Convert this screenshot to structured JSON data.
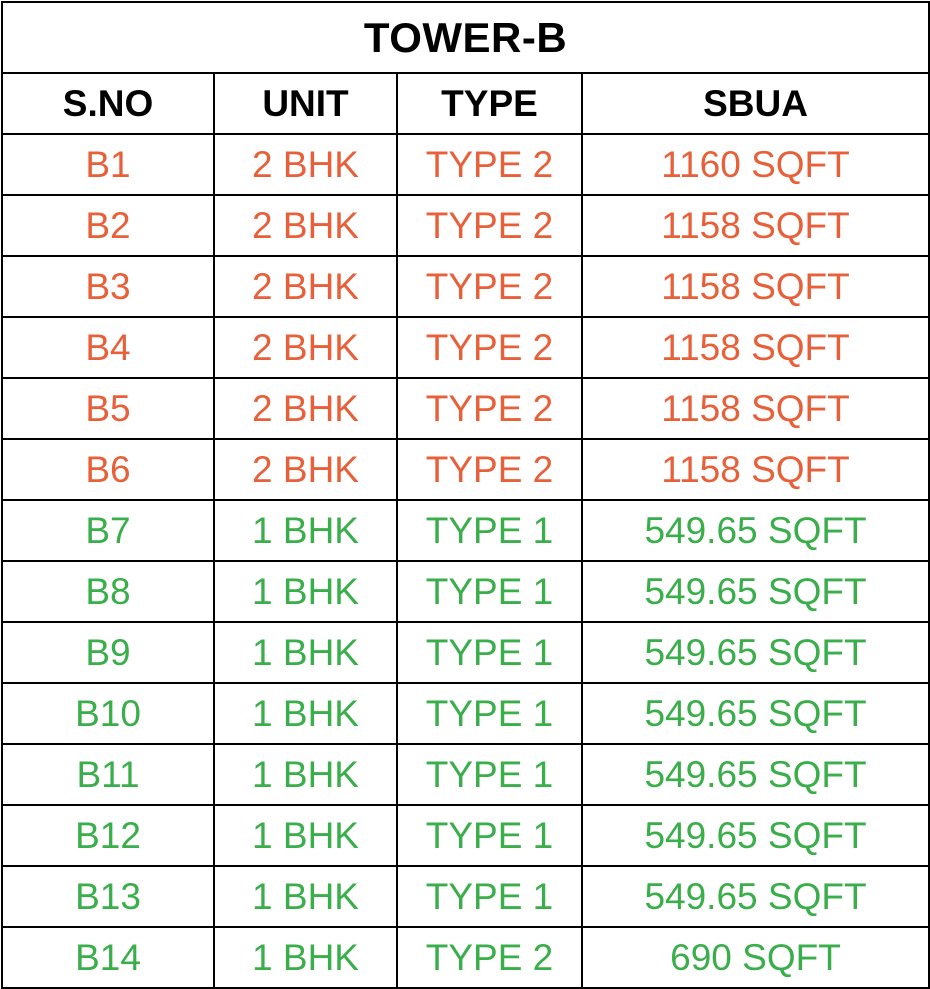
{
  "title": "TOWER-B",
  "colors": {
    "orange": "#E8603A",
    "green": "#3AAE4A",
    "border": "#000000",
    "header_text": "#000000"
  },
  "columns": [
    "S.NO",
    "UNIT",
    "TYPE",
    "SBUA"
  ],
  "rows": [
    {
      "sno": "B1",
      "unit": "2 BHK",
      "type": "TYPE 2",
      "sbua": "1160 SQFT",
      "color": "orange"
    },
    {
      "sno": "B2",
      "unit": "2 BHK",
      "type": "TYPE 2",
      "sbua": "1158 SQFT",
      "color": "orange"
    },
    {
      "sno": "B3",
      "unit": "2 BHK",
      "type": "TYPE 2",
      "sbua": "1158 SQFT",
      "color": "orange"
    },
    {
      "sno": "B4",
      "unit": "2 BHK",
      "type": "TYPE 2",
      "sbua": "1158 SQFT",
      "color": "orange"
    },
    {
      "sno": "B5",
      "unit": "2 BHK",
      "type": "TYPE 2",
      "sbua": "1158 SQFT",
      "color": "orange"
    },
    {
      "sno": "B6",
      "unit": "2 BHK",
      "type": "TYPE 2",
      "sbua": "1158 SQFT",
      "color": "orange"
    },
    {
      "sno": "B7",
      "unit": "1 BHK",
      "type": "TYPE 1",
      "sbua": "549.65 SQFT",
      "color": "green"
    },
    {
      "sno": "B8",
      "unit": "1 BHK",
      "type": "TYPE 1",
      "sbua": "549.65 SQFT",
      "color": "green"
    },
    {
      "sno": "B9",
      "unit": "1 BHK",
      "type": "TYPE 1",
      "sbua": "549.65 SQFT",
      "color": "green"
    },
    {
      "sno": "B10",
      "unit": "1 BHK",
      "type": "TYPE 1",
      "sbua": "549.65 SQFT",
      "color": "green"
    },
    {
      "sno": "B11",
      "unit": "1 BHK",
      "type": "TYPE 1",
      "sbua": "549.65 SQFT",
      "color": "green"
    },
    {
      "sno": "B12",
      "unit": "1 BHK",
      "type": "TYPE 1",
      "sbua": "549.65 SQFT",
      "color": "green"
    },
    {
      "sno": "B13",
      "unit": "1 BHK",
      "type": "TYPE 1",
      "sbua": "549.65 SQFT",
      "color": "green"
    },
    {
      "sno": "B14",
      "unit": "1 BHK",
      "type": "TYPE 2",
      "sbua": "690 SQFT",
      "color": "green"
    }
  ]
}
